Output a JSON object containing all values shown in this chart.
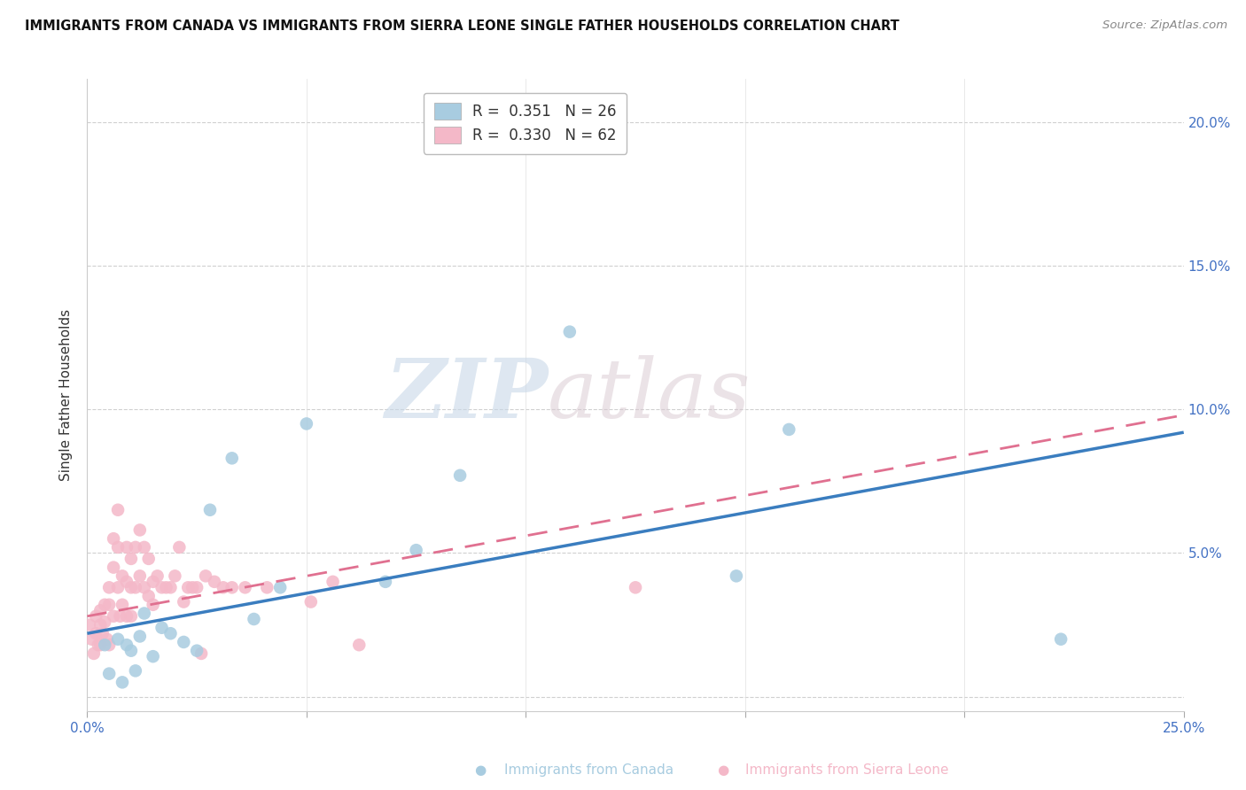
{
  "title": "IMMIGRANTS FROM CANADA VS IMMIGRANTS FROM SIERRA LEONE SINGLE FATHER HOUSEHOLDS CORRELATION CHART",
  "source": "Source: ZipAtlas.com",
  "ylabel": "Single Father Households",
  "xlabel_canada": "Immigrants from Canada",
  "xlabel_sierraleone": "Immigrants from Sierra Leone",
  "xlim": [
    0.0,
    0.25
  ],
  "ylim": [
    -0.005,
    0.215
  ],
  "xticks": [
    0.0,
    0.05,
    0.1,
    0.15,
    0.2,
    0.25
  ],
  "yticks": [
    0.0,
    0.05,
    0.1,
    0.15,
    0.2
  ],
  "canada_R": "0.351",
  "canada_N": "26",
  "sierra_R": "0.330",
  "sierra_N": "62",
  "canada_color": "#a8cce0",
  "sierra_color": "#f4b8c8",
  "canada_line_color": "#3a7dbf",
  "sierra_line_color": "#e07090",
  "watermark_zip": "ZIP",
  "watermark_atlas": "atlas",
  "canada_x": [
    0.004,
    0.005,
    0.007,
    0.008,
    0.009,
    0.01,
    0.011,
    0.012,
    0.013,
    0.015,
    0.017,
    0.019,
    0.022,
    0.025,
    0.028,
    0.033,
    0.038,
    0.044,
    0.05,
    0.068,
    0.075,
    0.085,
    0.11,
    0.148,
    0.16,
    0.222
  ],
  "canada_y": [
    0.018,
    0.008,
    0.02,
    0.005,
    0.018,
    0.016,
    0.009,
    0.021,
    0.029,
    0.014,
    0.024,
    0.022,
    0.019,
    0.016,
    0.065,
    0.083,
    0.027,
    0.038,
    0.095,
    0.04,
    0.051,
    0.077,
    0.127,
    0.042,
    0.093,
    0.02
  ],
  "sierra_x": [
    0.0005,
    0.001,
    0.0015,
    0.002,
    0.002,
    0.0025,
    0.003,
    0.003,
    0.003,
    0.0035,
    0.004,
    0.004,
    0.0045,
    0.005,
    0.005,
    0.005,
    0.006,
    0.006,
    0.006,
    0.007,
    0.007,
    0.007,
    0.0075,
    0.008,
    0.008,
    0.009,
    0.009,
    0.009,
    0.01,
    0.01,
    0.01,
    0.011,
    0.011,
    0.012,
    0.012,
    0.013,
    0.013,
    0.014,
    0.014,
    0.015,
    0.015,
    0.016,
    0.017,
    0.018,
    0.019,
    0.02,
    0.021,
    0.022,
    0.023,
    0.024,
    0.025,
    0.026,
    0.027,
    0.029,
    0.031,
    0.033,
    0.036,
    0.041,
    0.051,
    0.056,
    0.062,
    0.125
  ],
  "sierra_y": [
    0.025,
    0.02,
    0.015,
    0.028,
    0.022,
    0.018,
    0.03,
    0.025,
    0.018,
    0.022,
    0.032,
    0.026,
    0.02,
    0.038,
    0.032,
    0.018,
    0.055,
    0.045,
    0.028,
    0.065,
    0.052,
    0.038,
    0.028,
    0.042,
    0.032,
    0.052,
    0.04,
    0.028,
    0.048,
    0.038,
    0.028,
    0.052,
    0.038,
    0.058,
    0.042,
    0.052,
    0.038,
    0.048,
    0.035,
    0.04,
    0.032,
    0.042,
    0.038,
    0.038,
    0.038,
    0.042,
    0.052,
    0.033,
    0.038,
    0.038,
    0.038,
    0.015,
    0.042,
    0.04,
    0.038,
    0.038,
    0.038,
    0.038,
    0.033,
    0.04,
    0.018,
    0.038
  ],
  "canada_trend_x": [
    0.0,
    0.25
  ],
  "canada_trend_y": [
    0.022,
    0.092
  ],
  "sierra_trend_x": [
    0.0,
    0.25
  ],
  "sierra_trend_y": [
    0.028,
    0.098
  ]
}
